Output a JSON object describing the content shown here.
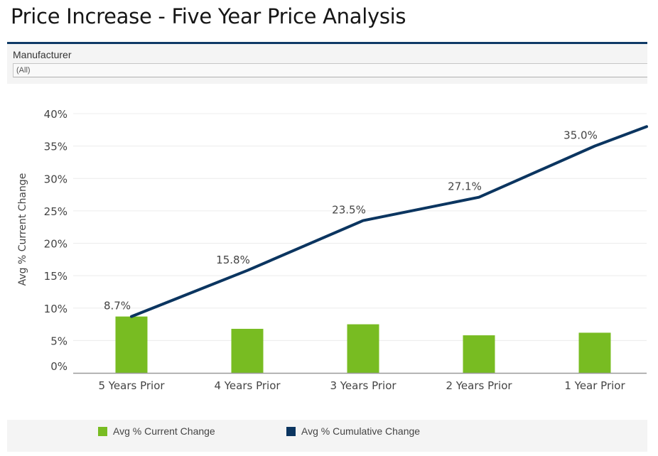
{
  "page": {
    "title": "Price Increase - Five Year Price Analysis"
  },
  "filter": {
    "label": "Manufacturer",
    "selected_value": "(All)"
  },
  "colors": {
    "rule": "#0f3a66",
    "bar": "#78bc22",
    "line": "#0b3560",
    "grid": "#ececec",
    "axis": "#999999"
  },
  "legend": {
    "items": [
      {
        "label": "Avg % Current Change",
        "color": "#78bc22"
      },
      {
        "label": "Avg % Cumulative Change",
        "color": "#0b3560"
      }
    ]
  },
  "chart_data": {
    "type": "bar",
    "title": "",
    "xlabel": "",
    "ylabel": "Avg % Current Change",
    "categories": [
      "5 Years Prior",
      "4 Years Prior",
      "3 Years Prior",
      "2 Years Prior",
      "1 Year Prior"
    ],
    "ylim": [
      0,
      40
    ],
    "yticks": [
      0,
      5,
      10,
      15,
      20,
      25,
      30,
      35,
      40
    ],
    "ytick_labels": [
      "0%",
      "5%",
      "10%",
      "15%",
      "20%",
      "25%",
      "30%",
      "35%",
      "40%"
    ],
    "grid": true,
    "legend_position": "bottom",
    "series": [
      {
        "name": "Avg % Current Change",
        "type": "bar",
        "values": [
          8.7,
          6.8,
          7.5,
          5.8,
          6.2
        ]
      },
      {
        "name": "Avg % Cumulative Change",
        "type": "line",
        "values": [
          8.7,
          15.8,
          23.5,
          27.1,
          35.0
        ],
        "data_labels": [
          "8.7%",
          "15.8%",
          "23.5%",
          "27.1%",
          "35.0%"
        ],
        "continues_past_last_category_to": 38.0
      }
    ]
  }
}
